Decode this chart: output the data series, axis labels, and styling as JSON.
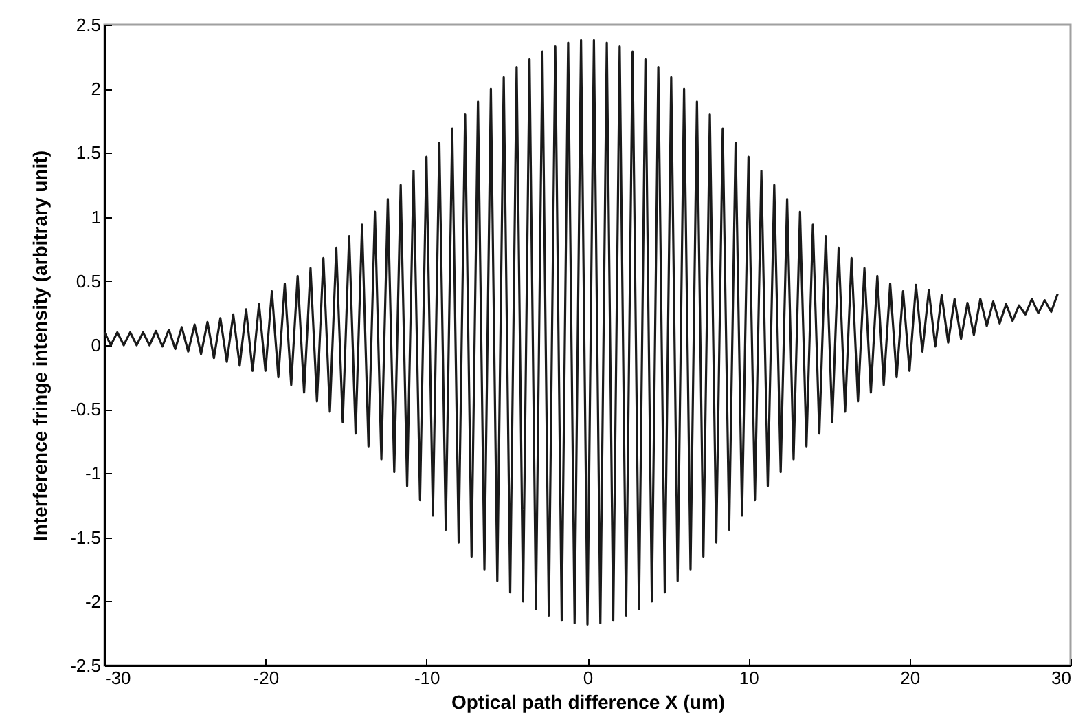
{
  "chart_data": {
    "type": "line",
    "xlabel": "Optical path difference X (um)",
    "ylabel": "Interference fringe intensity (arbitrary unit)",
    "x": [
      -30,
      -29.6,
      -29.2,
      -28.8,
      -28.4,
      -28,
      -27.6,
      -27.2,
      -26.8,
      -26.4,
      -26,
      -25.6,
      -25.2,
      -24.8,
      -24.4,
      -24,
      -23.6,
      -23.2,
      -22.8,
      -22.4,
      -22,
      -21.6,
      -21.2,
      -20.8,
      -20.4,
      -20,
      -19.6,
      -19.2,
      -18.8,
      -18.4,
      -18,
      -17.6,
      -17.2,
      -16.8,
      -16.4,
      -16,
      -15.6,
      -15.2,
      -14.8,
      -14.4,
      -14,
      -13.6,
      -13.2,
      -12.8,
      -12.4,
      -12,
      -11.6,
      -11.2,
      -10.8,
      -10.4,
      -10,
      -9.6,
      -9.2,
      -8.8,
      -8.4,
      -8,
      -7.6,
      -7.2,
      -6.8,
      -6.4,
      -6,
      -5.6,
      -5.2,
      -4.8,
      -4.4,
      -4,
      -3.6,
      -3.2,
      -2.8,
      -2.4,
      -2,
      -1.6,
      -1.2,
      -0.8,
      -0.4,
      0,
      0.4,
      0.8,
      1.2,
      1.6,
      2,
      2.4,
      2.8,
      3.2,
      3.6,
      4,
      4.4,
      4.8,
      5.2,
      5.6,
      6,
      6.4,
      6.8,
      7.2,
      7.6,
      8,
      8.4,
      8.8,
      9.2,
      9.6,
      10,
      10.4,
      10.8,
      11.2,
      11.6,
      12,
      12.4,
      12.8,
      13.2,
      13.6,
      14,
      14.4,
      14.8,
      15.2,
      15.6,
      16,
      16.4,
      16.8,
      17.2,
      17.6,
      18,
      18.4,
      18.8,
      19.2,
      19.6,
      20,
      20.4,
      20.8,
      21.2,
      21.6,
      22,
      22.4,
      22.8,
      23.2,
      23.6,
      24,
      24.4,
      24.8,
      25.2,
      25.6,
      26,
      26.4,
      26.8,
      27.2,
      27.6,
      28,
      28.4,
      28.8,
      29.2
    ],
    "series": [
      {
        "color": "#1a1a1a",
        "values": [
          0.1,
          0,
          0.1,
          0,
          0.1,
          0,
          0.1,
          0,
          0.11,
          -0.01,
          0.12,
          -0.03,
          0.14,
          -0.05,
          0.16,
          -0.07,
          0.18,
          -0.1,
          0.21,
          -0.13,
          0.24,
          -0.16,
          0.28,
          -0.2,
          0.32,
          -0.2,
          0.42,
          -0.25,
          0.48,
          -0.31,
          0.54,
          -0.37,
          0.6,
          -0.44,
          0.68,
          -0.52,
          0.76,
          -0.6,
          0.85,
          -0.69,
          0.94,
          -0.79,
          1.04,
          -0.89,
          1.14,
          -0.99,
          1.25,
          -1.1,
          1.36,
          -1.21,
          1.47,
          -1.33,
          1.58,
          -1.44,
          1.69,
          -1.54,
          1.8,
          -1.65,
          1.9,
          -1.75,
          2,
          -1.84,
          2.09,
          -1.93,
          2.17,
          -2,
          2.23,
          -2.06,
          2.29,
          -2.11,
          2.33,
          -2.15,
          2.36,
          -2.17,
          2.38,
          -2.18,
          2.38,
          -2.17,
          2.36,
          -2.15,
          2.33,
          -2.11,
          2.29,
          -2.06,
          2.23,
          -2,
          2.17,
          -1.93,
          2.09,
          -1.84,
          2,
          -1.75,
          1.9,
          -1.65,
          1.8,
          -1.54,
          1.69,
          -1.44,
          1.58,
          -1.33,
          1.47,
          -1.21,
          1.36,
          -1.1,
          1.25,
          -0.99,
          1.14,
          -0.89,
          1.04,
          -0.79,
          0.94,
          -0.69,
          0.85,
          -0.6,
          0.76,
          -0.52,
          0.68,
          -0.44,
          0.6,
          -0.37,
          0.54,
          -0.31,
          0.48,
          -0.25,
          0.42,
          -0.2,
          0.47,
          -0.05,
          0.43,
          -0.01,
          0.39,
          0.02,
          0.36,
          0.05,
          0.33,
          0.08,
          0.36,
          0.15,
          0.34,
          0.17,
          0.32,
          0.19,
          0.31,
          0.24,
          0.36,
          0.25,
          0.35,
          0.26,
          0.4
        ]
      }
    ],
    "xlim": [
      -30,
      30
    ],
    "xticks": [
      -30,
      -20,
      -10,
      0,
      10,
      20,
      30
    ],
    "ylim": [
      -2.5,
      2.5
    ],
    "yticks": [
      -2.5,
      -2,
      -1.5,
      -1,
      -0.5,
      0,
      0.5,
      1,
      1.5,
      2,
      2.5
    ],
    "grid": false,
    "marker": "none",
    "line_style": "solid"
  }
}
